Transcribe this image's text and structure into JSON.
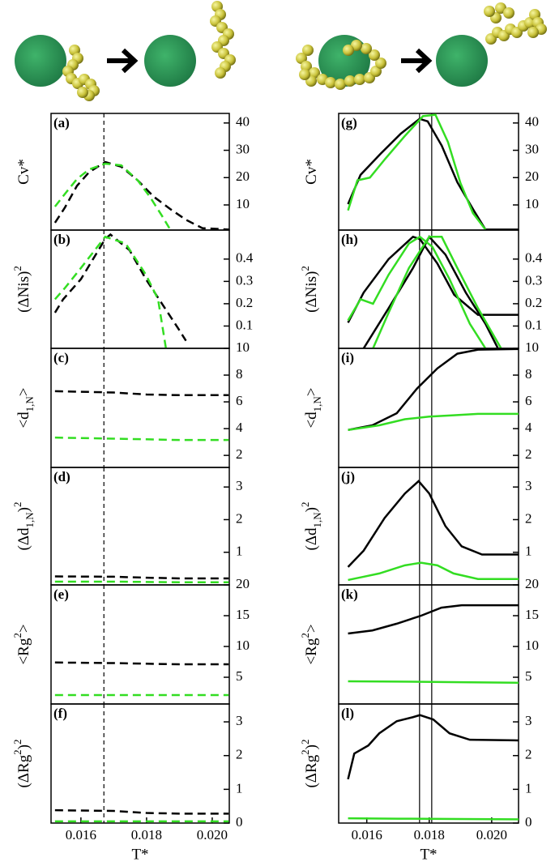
{
  "chart_data": [
    {
      "type": "line",
      "panel_label": "(a)",
      "ylabel": [
        "Cv*"
      ],
      "ylabel_style": [
        "normal"
      ],
      "xlim": [
        0.01509,
        0.02052
      ],
      "ylim": [
        0.8,
        43.5
      ],
      "yticks": [
        10,
        20,
        30,
        40
      ],
      "vlines": [
        0.0167
      ],
      "vline_style": "dashed",
      "line_style": "dashed",
      "series": [
        {
          "color": "#000000",
          "x": [
            0.01521,
            0.01551,
            0.01588,
            0.01625,
            0.01674,
            0.01723,
            0.01773,
            0.01822,
            0.01872,
            0.01921,
            0.0197,
            0.02052
          ],
          "values": [
            3.5,
            9,
            17,
            22,
            25.7,
            24,
            19,
            13,
            8.5,
            4.5,
            1.5,
            1
          ]
        },
        {
          "color": "#33dd22",
          "x": [
            0.01521,
            0.01551,
            0.01588,
            0.01625,
            0.01674,
            0.01723,
            0.01773,
            0.0181,
            0.01847,
            0.01872
          ],
          "values": [
            9.4,
            14,
            19.5,
            23,
            25.1,
            24.5,
            19,
            13,
            6,
            1
          ]
        }
      ]
    },
    {
      "type": "line",
      "panel_label": "(b)",
      "ylabel": [
        "(ΔNis)",
        "2"
      ],
      "ylabel_style": [
        "normal",
        "sup"
      ],
      "xlim": [
        0.01509,
        0.02052
      ],
      "ylim": [
        0,
        0.53
      ],
      "yticks": [
        0.1,
        0.2,
        0.3,
        0.4
      ],
      "vlines": [
        0.0167
      ],
      "vline_style": "dashed",
      "line_style": "dashed",
      "series": [
        {
          "color": "#000000",
          "x": [
            0.01521,
            0.01546,
            0.016,
            0.01637,
            0.01674,
            0.0169,
            0.01748,
            0.01798,
            0.01847,
            0.01896,
            0.0192
          ],
          "values": [
            0.16,
            0.22,
            0.31,
            0.4,
            0.49,
            0.51,
            0.44,
            0.31,
            0.2,
            0.09,
            0.034
          ]
        },
        {
          "color": "#33dd22",
          "x": [
            0.01521,
            0.01551,
            0.016,
            0.01674,
            0.01736,
            0.01798,
            0.01835,
            0.01859
          ],
          "values": [
            0.22,
            0.27,
            0.36,
            0.5,
            0.47,
            0.33,
            0.22,
            0
          ]
        }
      ]
    },
    {
      "type": "line",
      "panel_label": "(c)",
      "ylabel": [
        "<d",
        "1,N",
        ">"
      ],
      "ylabel_style": [
        "normal",
        "sub",
        "normal"
      ],
      "xlim": [
        0.01509,
        0.02052
      ],
      "ylim": [
        1.1,
        10
      ],
      "yticks": [
        2,
        4,
        6,
        8,
        10
      ],
      "vlines": [
        0.0167
      ],
      "vline_style": "dashed",
      "line_style": "dashed",
      "series": [
        {
          "color": "#000000",
          "x": [
            0.01521,
            0.017,
            0.018,
            0.019,
            0.0205
          ],
          "values": [
            6.8,
            6.7,
            6.55,
            6.5,
            6.5
          ]
        },
        {
          "color": "#33dd22",
          "x": [
            0.01521,
            0.017,
            0.018,
            0.019,
            0.0205
          ],
          "values": [
            3.33,
            3.25,
            3.2,
            3.15,
            3.15
          ]
        }
      ]
    },
    {
      "type": "line",
      "panel_label": "(d)",
      "ylabel": [
        "(Δd",
        "1,N",
        ")",
        "2"
      ],
      "ylabel_style": [
        "normal",
        "sub",
        "normal",
        "sup"
      ],
      "xlim": [
        0.01509,
        0.02052
      ],
      "ylim": [
        0,
        3.6
      ],
      "yticks": [
        1,
        2,
        3
      ],
      "vlines": [
        0.0167
      ],
      "vline_style": "dashed",
      "line_style": "dashed",
      "series": [
        {
          "color": "#000000",
          "x": [
            0.01521,
            0.017,
            0.018,
            0.019,
            0.0205
          ],
          "values": [
            0.26,
            0.25,
            0.22,
            0.2,
            0.2
          ]
        },
        {
          "color": "#33dd22",
          "x": [
            0.01521,
            0.017,
            0.018,
            0.019,
            0.0205
          ],
          "values": [
            0.1,
            0.1,
            0.09,
            0.08,
            0.08
          ]
        }
      ]
    },
    {
      "type": "line",
      "panel_label": "(e)",
      "ylabel": [
        "<Rg",
        "2",
        ">"
      ],
      "ylabel_style": [
        "normal",
        "sup",
        "normal"
      ],
      "xlim": [
        0.01509,
        0.02052
      ],
      "ylim": [
        0.66,
        20
      ],
      "yticks": [
        5,
        10,
        15,
        20
      ],
      "vlines": [
        0.0167
      ],
      "vline_style": "dashed",
      "line_style": "dashed",
      "series": [
        {
          "color": "#000000",
          "x": [
            0.01521,
            0.017,
            0.018,
            0.019,
            0.0205
          ],
          "values": [
            7.4,
            7.3,
            7.2,
            7.1,
            7.1
          ]
        },
        {
          "color": "#33dd22",
          "x": [
            0.01521,
            0.017,
            0.018,
            0.019,
            0.0205
          ],
          "values": [
            2.1,
            2.1,
            2.1,
            2.1,
            2.1
          ]
        }
      ]
    },
    {
      "type": "line",
      "panel_label": "(f)",
      "ylabel": [
        "(ΔRg",
        "2",
        ")",
        "2"
      ],
      "ylabel_style": [
        "normal",
        "sup",
        "normal",
        "sup"
      ],
      "xlim": [
        0.01509,
        0.02052
      ],
      "ylim": [
        0,
        3.53
      ],
      "yticks": [
        0,
        1,
        2,
        3
      ],
      "xticks": [
        0.016,
        0.018,
        {
          "value": 0.02,
          "label": "0.020"
        }
      ],
      "xlabel": "T*",
      "vlines": [
        0.0167
      ],
      "vline_style": "dashed",
      "line_style": "dashed",
      "series": [
        {
          "color": "#000000",
          "x": [
            0.01521,
            0.017,
            0.018,
            0.019,
            0.0205
          ],
          "values": [
            0.38,
            0.36,
            0.3,
            0.28,
            0.28
          ]
        },
        {
          "color": "#33dd22",
          "x": [
            0.01521,
            0.017,
            0.018,
            0.019,
            0.0205
          ],
          "values": [
            0.05,
            0.05,
            0.05,
            0.05,
            0.05
          ]
        }
      ]
    },
    {
      "type": "line",
      "panel_label": "(g)",
      "ylabel": [
        "Cv*"
      ],
      "ylabel_style": [
        "normal"
      ],
      "xlim": [
        0.0151,
        0.02086
      ],
      "ylim": [
        0.8,
        43.5
      ],
      "yticks": [
        10,
        20,
        30,
        40
      ],
      "vlines": [
        0.01769,
        0.01808
      ],
      "vline_style": "solid",
      "line_style": "solid",
      "series": [
        {
          "color": "#000000",
          "x": [
            0.0154,
            0.0158,
            0.01644,
            0.01709,
            0.01769,
            0.01795,
            0.0184,
            0.0189,
            0.01943,
            0.0198,
            0.0209
          ],
          "values": [
            10.3,
            21,
            28.7,
            36.1,
            41.5,
            40.6,
            31.7,
            18.3,
            7.9,
            1,
            1
          ]
        },
        {
          "color": "#33dd22",
          "x": [
            0.0154,
            0.0157,
            0.0161,
            0.0166,
            0.0172,
            0.0178,
            0.0182,
            0.0186,
            0.019,
            0.0194,
            0.0198
          ],
          "values": [
            8,
            19,
            20,
            27,
            35,
            42.5,
            43,
            33,
            18,
            7,
            1
          ]
        }
      ]
    },
    {
      "type": "line",
      "panel_label": "(h)",
      "ylabel": [
        "(ΔNis)",
        "2"
      ],
      "ylabel_style": [
        "normal",
        "sup"
      ],
      "xlim": [
        0.0151,
        0.02086
      ],
      "ylim": [
        0,
        0.53
      ],
      "yticks": [
        0.1,
        0.2,
        0.3,
        0.4
      ],
      "vlines": [
        0.01769,
        0.01808
      ],
      "vline_style": "solid",
      "line_style": "solid",
      "series": [
        {
          "color": "#000000",
          "x": [
            0.0154,
            0.0159,
            0.0167,
            0.01748,
            0.0177,
            0.01826,
            0.0188,
            0.01956,
            0.0202,
            0.0209
          ],
          "values": [
            0.115,
            0.25,
            0.4,
            0.5,
            0.49,
            0.38,
            0.24,
            0.15,
            0.15,
            0.15
          ]
        },
        {
          "color": "#000000",
          "x": [
            0.0159,
            0.0167,
            0.01748,
            0.018,
            0.01852,
            0.01917,
            0.0198,
            0.0202
          ],
          "values": [
            0,
            0.18,
            0.36,
            0.5,
            0.42,
            0.25,
            0.11,
            0
          ]
        },
        {
          "color": "#33dd22",
          "x": [
            0.0154,
            0.0158,
            0.0162,
            0.0167,
            0.01735,
            0.0177,
            0.0181,
            0.01865,
            0.0193,
            0.0198
          ],
          "values": [
            0.125,
            0.22,
            0.2,
            0.33,
            0.47,
            0.5,
            0.455,
            0.31,
            0.11,
            0
          ]
        },
        {
          "color": "#33dd22",
          "x": [
            0.0162,
            0.0167,
            0.01735,
            0.018,
            0.0184,
            0.0189,
            0.01956,
            0.0203
          ],
          "values": [
            0,
            0.16,
            0.36,
            0.5,
            0.5,
            0.36,
            0.18,
            0
          ]
        }
      ]
    },
    {
      "type": "line",
      "panel_label": "(i)",
      "ylabel": [
        "<d",
        "1,N",
        ">"
      ],
      "ylabel_style": [
        "normal",
        "sub",
        "normal"
      ],
      "xlim": [
        0.0151,
        0.02086
      ],
      "ylim": [
        1.1,
        10
      ],
      "yticks": [
        2,
        4,
        6,
        8,
        10
      ],
      "vlines": [
        0.01769,
        0.01808
      ],
      "vline_style": "solid",
      "line_style": "solid",
      "series": [
        {
          "color": "#000000",
          "x": [
            0.0154,
            0.01618,
            0.01696,
            0.01761,
            0.01826,
            0.0189,
            0.01956,
            0.0209
          ],
          "values": [
            3.9,
            4.25,
            5.15,
            7,
            8.5,
            9.6,
            9.9,
            9.95
          ]
        },
        {
          "color": "#33dd22",
          "x": [
            0.0154,
            0.0164,
            0.01722,
            0.018,
            0.01878,
            0.01956,
            0.0209
          ],
          "values": [
            3.9,
            4.25,
            4.7,
            4.9,
            5,
            5.1,
            5.1
          ]
        }
      ]
    },
    {
      "type": "line",
      "panel_label": "(j)",
      "ylabel": [
        "(Δd",
        "1,N",
        ")",
        "2"
      ],
      "ylabel_style": [
        "normal",
        "sub",
        "normal",
        "sup"
      ],
      "xlim": [
        0.0151,
        0.02086
      ],
      "ylim": [
        0,
        3.6
      ],
      "yticks": [
        1,
        2,
        3
      ],
      "vlines": [
        0.01769,
        0.01808
      ],
      "vline_style": "solid",
      "line_style": "solid",
      "series": [
        {
          "color": "#000000",
          "x": [
            0.0154,
            0.0159,
            0.01657,
            0.01722,
            0.01766,
            0.018,
            0.01852,
            0.01904,
            0.01969,
            0.0209
          ],
          "values": [
            0.55,
            1.05,
            2.05,
            2.8,
            3.18,
            2.8,
            1.8,
            1.18,
            0.93,
            0.93
          ]
        },
        {
          "color": "#33dd22",
          "x": [
            0.0154,
            0.0159,
            0.0164,
            0.01722,
            0.01774,
            0.01826,
            0.01878,
            0.01956,
            0.0209
          ],
          "values": [
            0.15,
            0.25,
            0.35,
            0.6,
            0.68,
            0.6,
            0.35,
            0.18,
            0.18
          ]
        }
      ]
    },
    {
      "type": "line",
      "panel_label": "(k)",
      "ylabel": [
        "<Rg",
        "2",
        ">"
      ],
      "ylabel_style": [
        "normal",
        "sup",
        "normal"
      ],
      "xlim": [
        0.0151,
        0.02086
      ],
      "ylim": [
        0.66,
        20
      ],
      "yticks": [
        5,
        10,
        15,
        20
      ],
      "vlines": [
        0.01769,
        0.01808
      ],
      "vline_style": "solid",
      "line_style": "solid",
      "series": [
        {
          "color": "#000000",
          "x": [
            0.0154,
            0.01618,
            0.01696,
            0.01774,
            0.01839,
            0.01904,
            0.0209
          ],
          "values": [
            12.1,
            12.6,
            13.7,
            15,
            16.3,
            16.7,
            16.7
          ]
        },
        {
          "color": "#33dd22",
          "x": [
            0.0154,
            0.017,
            0.019,
            0.0209
          ],
          "values": [
            4.35,
            4.3,
            4.2,
            4.1
          ]
        }
      ]
    },
    {
      "type": "line",
      "panel_label": "(l)",
      "ylabel": [
        "(ΔRg",
        "2",
        ")",
        "2"
      ],
      "ylabel_style": [
        "normal",
        "sup",
        "normal",
        "sup"
      ],
      "xlim": [
        0.0151,
        0.02086
      ],
      "ylim": [
        0,
        3.53
      ],
      "yticks": [
        0,
        1,
        2,
        3
      ],
      "xticks": [
        0.016,
        0.018,
        {
          "value": 0.02,
          "label": "0.020"
        }
      ],
      "xlabel": "T*",
      "vlines": [
        0.01769,
        0.01808
      ],
      "vline_style": "solid",
      "line_style": "solid",
      "series": [
        {
          "color": "#000000",
          "x": [
            0.0154,
            0.0156,
            0.01605,
            0.0164,
            0.01696,
            0.01748,
            0.0177,
            0.01813,
            0.01865,
            0.0193,
            0.0209
          ],
          "values": [
            1.3,
            2.06,
            2.3,
            2.66,
            3.02,
            3.14,
            3.2,
            3.07,
            2.66,
            2.47,
            2.45
          ]
        },
        {
          "color": "#33dd22",
          "x": [
            0.0154,
            0.017,
            0.019,
            0.0209
          ],
          "values": [
            0.14,
            0.13,
            0.12,
            0.11
          ]
        }
      ]
    }
  ]
}
